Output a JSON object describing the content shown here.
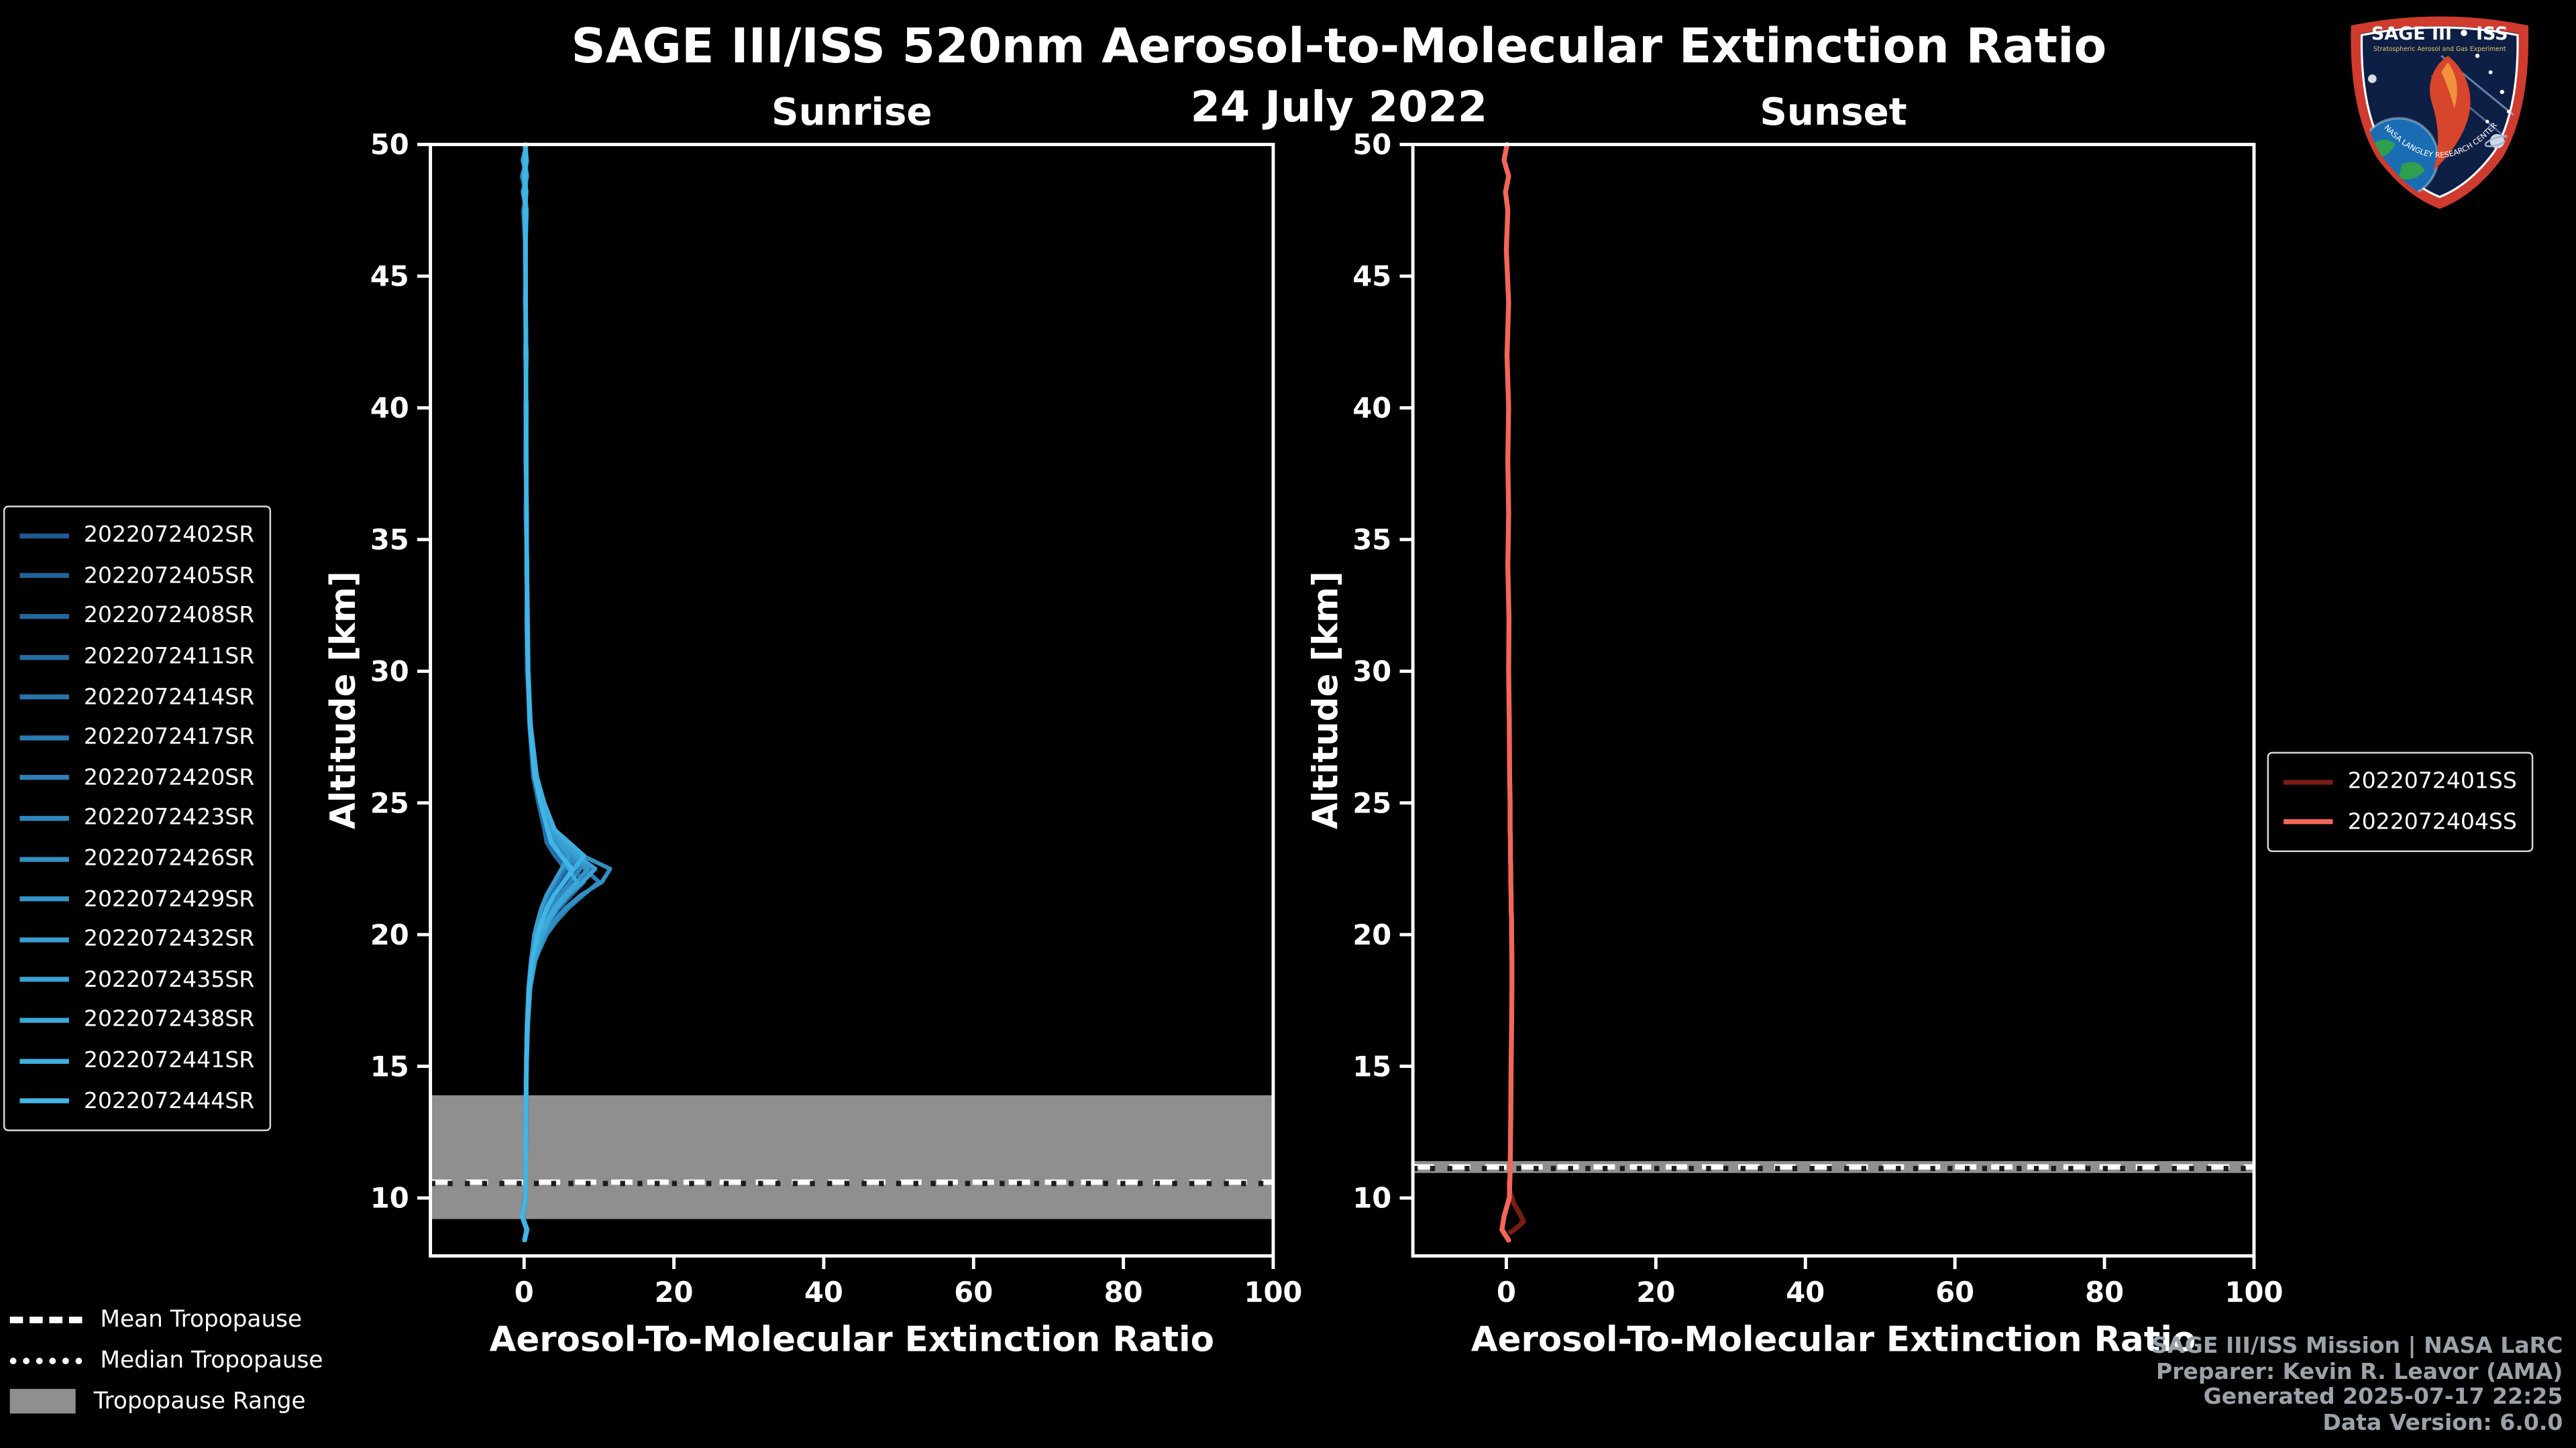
{
  "page": {
    "title": "SAGE III/ISS 520nm Aerosol-to-Molecular Extinction Ratio",
    "date": "24 July 2022"
  },
  "logo": {
    "title": "SAGE III • ISS",
    "subtitle": "Stratospheric Aerosol and Gas Experiment",
    "arc_text": "NASA LANGLEY RESEARCH CENTER"
  },
  "footer": {
    "line1": "SAGE III/ISS Mission | NASA LaRC",
    "line2": "Preparer: Kevin R. Leavor (AMA)",
    "line3": "Generated 2025-07-17 22:25",
    "line4": "Data Version: 6.0.0"
  },
  "tropopause_legend": [
    {
      "style": "dashed",
      "label": "Mean Tropopause"
    },
    {
      "style": "dotted",
      "label": "Median Tropopause"
    },
    {
      "style": "patch",
      "label": "Tropopause Range"
    }
  ],
  "colors": {
    "background": "#000000",
    "axis": "#ffffff",
    "tropopause_range": "#8f8f8f",
    "mean_line": "#ffffff",
    "median_dots": "#1c1c1c"
  },
  "chart_data": [
    {
      "type": "line",
      "id": "sunrise",
      "title": "Sunrise",
      "xlabel": "Aerosol-To-Molecular Extinction Ratio",
      "ylabel": "Altitude [km]",
      "xlim": [
        -12.5,
        100
      ],
      "ylim": [
        7.8,
        50
      ],
      "xticks": [
        0,
        20,
        40,
        60,
        80,
        100
      ],
      "yticks": [
        10,
        15,
        20,
        25,
        30,
        35,
        40,
        45,
        50
      ],
      "grid": false,
      "legend_position": "outside-left",
      "tropopause": {
        "mean_km": 10.6,
        "median_km": 10.55,
        "range_km": [
          9.2,
          13.9
        ]
      },
      "altitudes": [
        50,
        49.4,
        48.8,
        48.2,
        47.5,
        46,
        44,
        42,
        40,
        38,
        36,
        34,
        32,
        30,
        28,
        26,
        25,
        24,
        23.5,
        23,
        22.5,
        22,
        21.5,
        21,
        20.5,
        20,
        19,
        18,
        16.5,
        15,
        13,
        11,
        10,
        9.3,
        8.8,
        8.4
      ],
      "series": [
        {
          "name": "2022072402SR",
          "color": "#1d5a93",
          "values": [
            0.3,
            -0.2,
            0.4,
            0.0,
            0.2,
            0.1,
            0.2,
            0.2,
            0.3,
            0.2,
            0.3,
            0.3,
            0.4,
            0.5,
            0.7,
            1.4,
            2.1,
            3.0,
            3.9,
            5.3,
            7.0,
            5.7,
            4.3,
            3.3,
            2.5,
            1.9,
            1.1,
            0.7,
            0.4,
            0.3,
            0.25,
            0.2,
            0.2,
            -0.2,
            0.4,
            0.1
          ]
        },
        {
          "name": "2022072405SR",
          "color": "#206199",
          "values": [
            0.1,
            0.3,
            -0.3,
            0.2,
            0.0,
            0.2,
            0.1,
            0.3,
            0.2,
            0.3,
            0.2,
            0.4,
            0.3,
            0.4,
            0.8,
            1.5,
            2.3,
            3.2,
            3.3,
            4.5,
            6.0,
            4.9,
            3.7,
            2.8,
            2.2,
            1.6,
            1.0,
            0.6,
            0.35,
            0.25,
            0.2,
            0.25,
            0.15,
            -0.3,
            0.3,
            0.0
          ]
        },
        {
          "name": "2022072408SR",
          "color": "#22679f",
          "values": [
            0.2,
            0.0,
            0.3,
            -0.2,
            0.3,
            0.1,
            0.2,
            0.3,
            0.2,
            0.2,
            0.35,
            0.3,
            0.45,
            0.5,
            0.75,
            1.3,
            2.0,
            2.9,
            3.6,
            4.8,
            6.6,
            8.0,
            6.3,
            4.7,
            3.4,
            2.4,
            1.2,
            0.7,
            0.4,
            0.3,
            0.2,
            0.2,
            0.25,
            -0.15,
            0.35,
            0.1
          ]
        },
        {
          "name": "2022072411SR",
          "color": "#256ea5",
          "values": [
            0.0,
            0.4,
            0.1,
            0.3,
            -0.1,
            0.15,
            0.25,
            0.2,
            0.3,
            0.25,
            0.3,
            0.35,
            0.4,
            0.45,
            0.7,
            1.2,
            1.9,
            2.7,
            3.0,
            4.1,
            5.5,
            4.5,
            3.4,
            2.6,
            2.0,
            1.5,
            0.9,
            0.6,
            0.35,
            0.25,
            0.2,
            0.2,
            0.2,
            -0.25,
            0.3,
            0.05
          ]
        },
        {
          "name": "2022072414SR",
          "color": "#2774ab",
          "values": [
            0.25,
            -0.1,
            0.35,
            0.1,
            0.25,
            0.2,
            0.15,
            0.25,
            0.2,
            0.3,
            0.3,
            0.4,
            0.4,
            0.5,
            0.8,
            1.5,
            2.4,
            3.6,
            5.0,
            6.8,
            9.0,
            7.4,
            5.6,
            4.2,
            3.2,
            2.4,
            1.3,
            0.8,
            0.45,
            0.3,
            0.25,
            0.2,
            0.2,
            -0.2,
            0.4,
            0.1
          ]
        },
        {
          "name": "2022072417SR",
          "color": "#2a7bb1",
          "values": [
            0.15,
            0.25,
            0.0,
            0.3,
            0.1,
            0.2,
            0.2,
            0.3,
            0.25,
            0.2,
            0.35,
            0.3,
            0.4,
            0.5,
            0.75,
            1.6,
            2.5,
            3.8,
            5.0,
            6.5,
            5.4,
            4.3,
            3.3,
            2.5,
            1.9,
            1.4,
            1.0,
            0.65,
            0.4,
            0.3,
            0.2,
            0.25,
            0.2,
            -0.2,
            0.35,
            0.05
          ]
        },
        {
          "name": "2022072420SR",
          "color": "#2c81b7",
          "values": [
            0.3,
            0.1,
            0.4,
            -0.1,
            0.2,
            0.2,
            0.25,
            0.2,
            0.3,
            0.3,
            0.35,
            0.4,
            0.45,
            0.55,
            0.85,
            1.6,
            2.5,
            3.7,
            4.4,
            5.9,
            8.1,
            10.0,
            7.9,
            5.9,
            4.3,
            3.0,
            1.4,
            0.8,
            0.5,
            0.35,
            0.25,
            0.25,
            0.2,
            -0.2,
            0.4,
            0.1
          ]
        },
        {
          "name": "2022072423SR",
          "color": "#2f88bd",
          "values": [
            0.2,
            0.35,
            0.05,
            0.25,
            0.0,
            0.25,
            0.2,
            0.3,
            0.25,
            0.3,
            0.3,
            0.35,
            0.45,
            0.5,
            0.8,
            1.5,
            2.3,
            3.4,
            4.1,
            5.6,
            7.5,
            6.2,
            4.7,
            3.5,
            2.7,
            2.0,
            1.15,
            0.7,
            0.4,
            0.3,
            0.25,
            0.2,
            0.2,
            -0.25,
            0.35,
            0.05
          ]
        },
        {
          "name": "2022072426SR",
          "color": "#328fc2",
          "values": [
            0.25,
            0.0,
            0.3,
            0.1,
            0.35,
            0.2,
            0.25,
            0.3,
            0.25,
            0.3,
            0.35,
            0.4,
            0.5,
            0.6,
            0.9,
            1.7,
            2.7,
            4.1,
            5.5,
            7.8,
            11.5,
            10.4,
            7.6,
            5.5,
            4.0,
            2.8,
            1.5,
            0.85,
            0.5,
            0.35,
            0.3,
            0.25,
            0.25,
            -0.2,
            0.45,
            0.1
          ]
        },
        {
          "name": "2022072429SR",
          "color": "#3495c8",
          "values": [
            0.1,
            0.3,
            -0.2,
            0.3,
            0.15,
            0.2,
            0.2,
            0.25,
            0.3,
            0.25,
            0.35,
            0.35,
            0.45,
            0.55,
            0.8,
            1.5,
            2.4,
            3.5,
            4.7,
            6.4,
            8.5,
            7.0,
            5.3,
            3.9,
            3.0,
            2.2,
            1.25,
            0.75,
            0.45,
            0.3,
            0.25,
            0.2,
            0.2,
            -0.2,
            0.4,
            0.05
          ]
        },
        {
          "name": "2022072432SR",
          "color": "#379cce",
          "values": [
            0.2,
            0.05,
            0.35,
            0.0,
            0.25,
            0.15,
            0.25,
            0.2,
            0.3,
            0.3,
            0.3,
            0.4,
            0.4,
            0.5,
            0.75,
            1.5,
            2.4,
            3.5,
            4.6,
            6.0,
            5.0,
            4.0,
            3.0,
            2.3,
            1.8,
            1.35,
            0.95,
            0.6,
            0.4,
            0.3,
            0.2,
            0.25,
            0.2,
            -0.25,
            0.3,
            0.05
          ]
        },
        {
          "name": "2022072435SR",
          "color": "#39a2d4",
          "values": [
            0.3,
            -0.15,
            0.3,
            0.15,
            0.2,
            0.25,
            0.2,
            0.3,
            0.25,
            0.3,
            0.35,
            0.4,
            0.45,
            0.55,
            0.85,
            1.6,
            2.6,
            3.9,
            5.2,
            7.1,
            9.5,
            7.8,
            5.9,
            4.4,
            3.3,
            2.5,
            1.35,
            0.8,
            0.5,
            0.35,
            0.25,
            0.25,
            0.2,
            -0.2,
            0.4,
            0.1
          ]
        },
        {
          "name": "2022072438SR",
          "color": "#3ca9da",
          "values": [
            0.15,
            0.3,
            0.0,
            0.3,
            0.1,
            0.2,
            0.25,
            0.25,
            0.3,
            0.25,
            0.3,
            0.35,
            0.4,
            0.5,
            0.8,
            1.4,
            2.2,
            3.2,
            3.8,
            5.0,
            6.0,
            7.0,
            5.5,
            4.1,
            3.0,
            2.1,
            1.1,
            0.7,
            0.4,
            0.3,
            0.25,
            0.2,
            0.2,
            -0.2,
            0.35,
            0.05
          ]
        },
        {
          "name": "2022072441SR",
          "color": "#3eafe0",
          "values": [
            0.25,
            0.05,
            0.3,
            -0.1,
            0.3,
            0.2,
            0.2,
            0.3,
            0.25,
            0.3,
            0.35,
            0.35,
            0.45,
            0.55,
            0.8,
            1.7,
            2.7,
            4.0,
            6.0,
            8.0,
            6.7,
            5.3,
            4.0,
            3.0,
            2.3,
            1.7,
            1.1,
            0.7,
            0.45,
            0.3,
            0.25,
            0.25,
            0.2,
            -0.2,
            0.4,
            0.1
          ]
        },
        {
          "name": "2022072444SR",
          "color": "#41b6e6",
          "values": [
            0.2,
            0.3,
            0.05,
            0.25,
            0.1,
            0.2,
            0.25,
            0.2,
            0.3,
            0.3,
            0.3,
            0.4,
            0.4,
            0.5,
            0.75,
            1.4,
            2.2,
            3.1,
            3.6,
            4.9,
            6.5,
            5.3,
            4.0,
            3.1,
            2.4,
            1.8,
            1.05,
            0.65,
            0.4,
            0.3,
            0.2,
            0.2,
            0.2,
            -0.3,
            0.35,
            0.05
          ]
        }
      ]
    },
    {
      "type": "line",
      "id": "sunset",
      "title": "Sunset",
      "xlabel": "Aerosol-To-Molecular Extinction Ratio",
      "ylabel": "Altitude [km]",
      "xlim": [
        -12.5,
        100
      ],
      "ylim": [
        7.8,
        50
      ],
      "xticks": [
        0,
        20,
        40,
        60,
        80,
        100
      ],
      "yticks": [
        10,
        15,
        20,
        25,
        30,
        35,
        40,
        45,
        50
      ],
      "grid": false,
      "legend_position": "outside-right",
      "tropopause": {
        "mean_km": 11.18,
        "median_km": 11.12,
        "range_km": [
          10.95,
          11.4
        ]
      },
      "altitudes": [
        50,
        49.4,
        48.8,
        48.2,
        47.5,
        46,
        44,
        42,
        40,
        38,
        36,
        34,
        32,
        30,
        28,
        26,
        25,
        24,
        23.5,
        23,
        22.5,
        22,
        21.5,
        21,
        20.5,
        20,
        19,
        18,
        16.5,
        15,
        13,
        11,
        10,
        9.3,
        8.8,
        8.4
      ],
      "series": [
        {
          "name": "2022072401SS",
          "color": "#7a1b14",
          "altitudes": [
            10.6,
            10.2,
            9.8,
            9.4,
            9.1,
            8.9,
            8.7
          ],
          "values": [
            0.3,
            0.5,
            1.0,
            1.8,
            2.3,
            1.5,
            0.6
          ]
        },
        {
          "name": "2022072404SS",
          "color": "#f4665a",
          "values": [
            0.1,
            -0.3,
            0.3,
            -0.1,
            0.2,
            0.0,
            0.3,
            0.1,
            0.3,
            0.2,
            0.3,
            0.2,
            0.35,
            0.3,
            0.4,
            0.45,
            0.5,
            0.5,
            0.55,
            0.55,
            0.6,
            0.6,
            0.65,
            0.65,
            0.7,
            0.7,
            0.75,
            0.75,
            0.7,
            0.65,
            0.6,
            0.5,
            0.4,
            -0.3,
            -0.6,
            0.3
          ]
        }
      ]
    }
  ]
}
